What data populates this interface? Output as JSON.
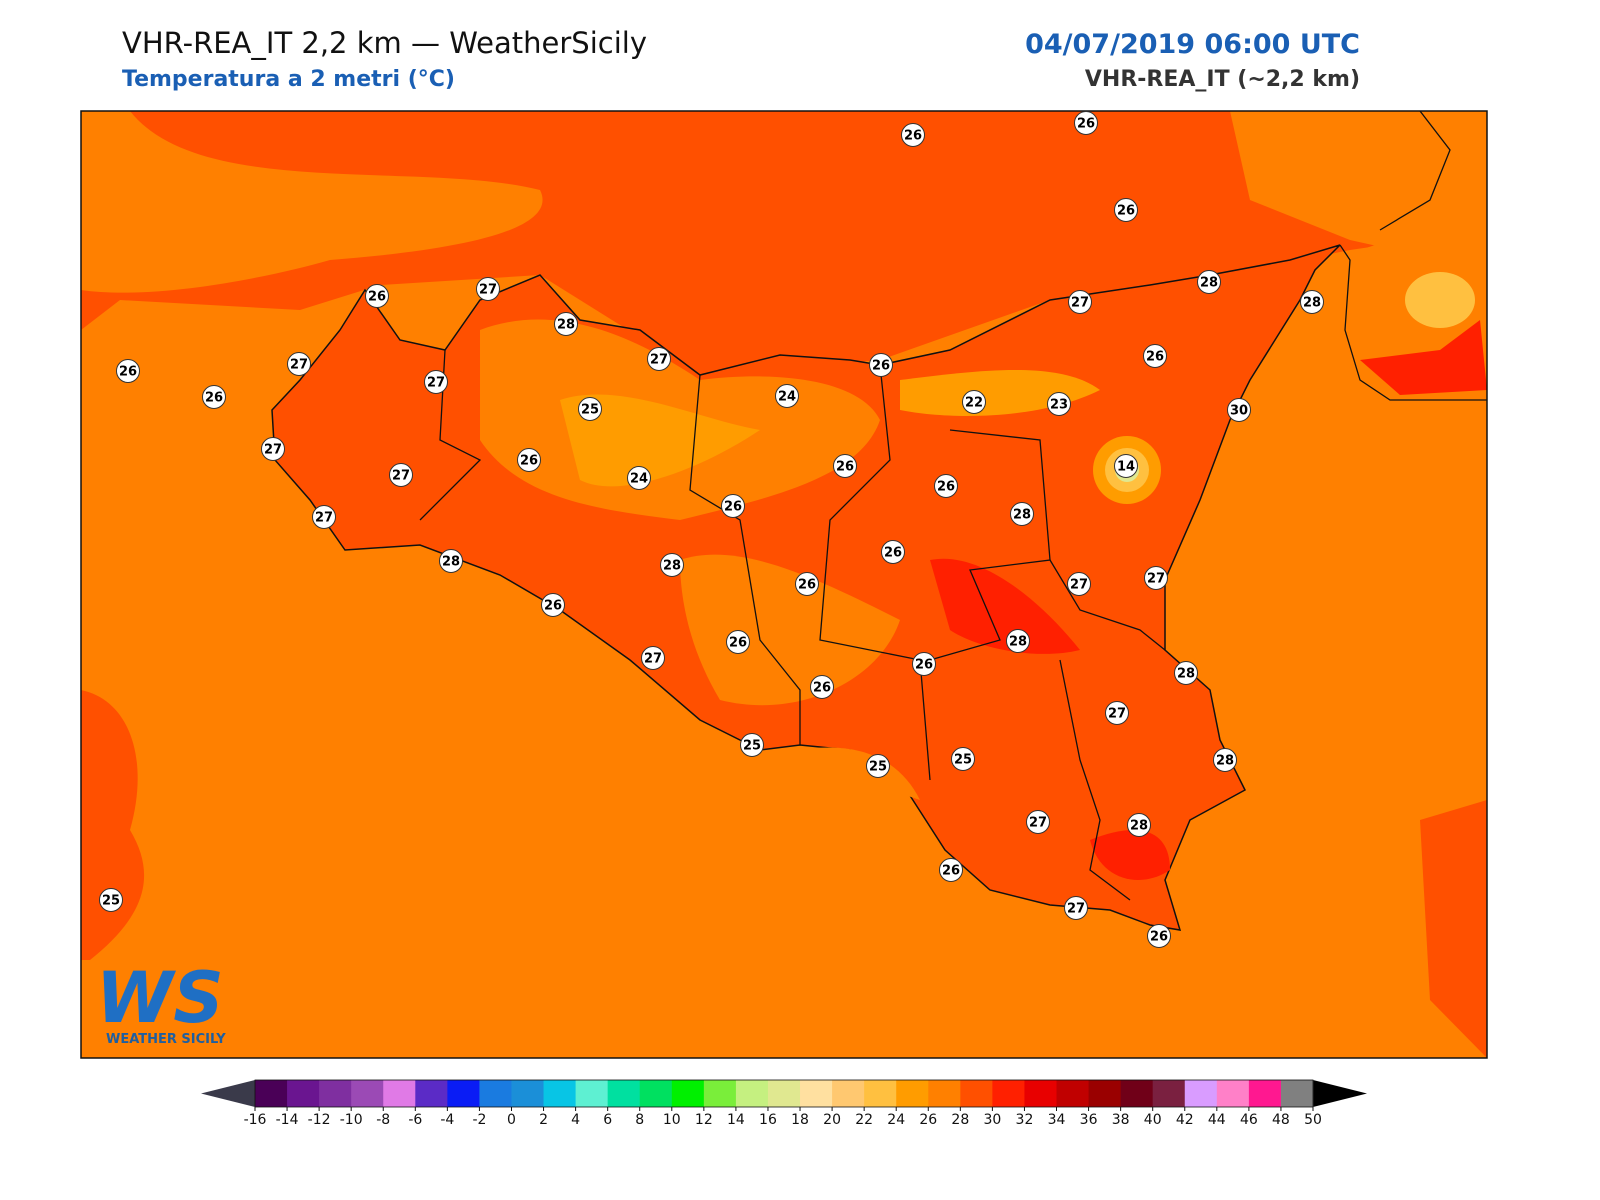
{
  "header": {
    "title": "VHR-REA_IT 2,2 km — WeatherSicily",
    "subtitle": "Temperatura a 2 metri (°C)",
    "datetime": "04/07/2019 06:00 UTC",
    "model": "VHR-REA_IT (~2,2 km)"
  },
  "stations": [
    26,
    26,
    26,
    26,
    27,
    28,
    26,
    27,
    27,
    26,
    27,
    26,
    27,
    28,
    28,
    26,
    25,
    24,
    22,
    23,
    30,
    27,
    27,
    26,
    24,
    26,
    14,
    26,
    27,
    26,
    28,
    26,
    28,
    28,
    26,
    27,
    27,
    26,
    26,
    28,
    27,
    26,
    26,
    28,
    27,
    25,
    25,
    25,
    28,
    27,
    28,
    26,
    27,
    26,
    25
  ],
  "logo": {
    "mark": "WS",
    "text": "WEATHER SICILY"
  },
  "colorbar": {
    "ticks": [
      -16,
      -14,
      -12,
      -10,
      -8,
      -6,
      -4,
      -2,
      0,
      2,
      4,
      6,
      8,
      10,
      12,
      14,
      16,
      18,
      20,
      22,
      24,
      26,
      28,
      30,
      32,
      34,
      36,
      38,
      40,
      42,
      44,
      46,
      48,
      50
    ],
    "colors": [
      "#4a0057",
      "#6a1590",
      "#7f2fa0",
      "#9b4ab5",
      "#e07ae6",
      "#5b2bc6",
      "#0a1cf5",
      "#1a7be0",
      "#1b8fd8",
      "#08c5e5",
      "#5ef0d2",
      "#00e0a0",
      "#00e060",
      "#00f000",
      "#7aee3a",
      "#c5f080",
      "#e0e890",
      "#ffe0a0",
      "#ffc870",
      "#ffc040",
      "#ff9c00",
      "#ff8000",
      "#ff5000",
      "#ff2000",
      "#e80000",
      "#c00000",
      "#9a0000",
      "#700018",
      "#7a2040",
      "#d99cff",
      "#ff80c8",
      "#ff1890",
      "#808080",
      "#303030"
    ],
    "under": "#3a3a4a",
    "over": "#000000"
  }
}
